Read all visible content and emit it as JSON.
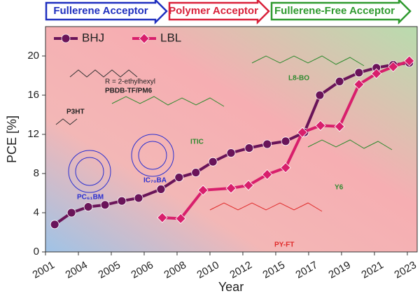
{
  "chart_data": {
    "type": "line",
    "phases": [
      "Fullerene Acceptor",
      "Polymer Acceptor",
      "Fullerene-Free Acceptor"
    ],
    "annotations": [
      "P3HT",
      "PBDB-TF/PM6",
      "R = 2-ethylhexyl",
      "PC₆₁BM",
      "IC₇₀BA",
      "ITIC",
      "L8-BO",
      "Y6",
      "PY-FT"
    ],
    "x_label": "Year",
    "y_label": "PCE [%]",
    "xlim": [
      0,
      11.3
    ],
    "ylim": [
      0,
      23
    ],
    "xticks": [
      {
        "value": 0,
        "label": "2001"
      },
      {
        "value": 1,
        "label": "2004"
      },
      {
        "value": 2,
        "label": "2005"
      },
      {
        "value": 3,
        "label": "2006"
      },
      {
        "value": 4,
        "label": "2008"
      },
      {
        "value": 5,
        "label": "2010"
      },
      {
        "value": 6,
        "label": "2012"
      },
      {
        "value": 7,
        "label": "2015"
      },
      {
        "value": 8,
        "label": "2017"
      },
      {
        "value": 9,
        "label": "2019"
      },
      {
        "value": 10,
        "label": "2021"
      },
      {
        "value": 11,
        "label": "2023"
      }
    ],
    "yticks": [
      0,
      4,
      8,
      12,
      16,
      20
    ],
    "legend": "upper left",
    "series": [
      {
        "name": "BHJ",
        "color": "#6a1459",
        "marker": "circle",
        "x": [
          0.28,
          0.79,
          1.3,
          1.81,
          2.32,
          2.83,
          3.51,
          4.06,
          4.57,
          5.09,
          5.64,
          6.19,
          6.74,
          7.3,
          7.87,
          8.34,
          8.94,
          9.53,
          10.06,
          10.57,
          11.06
        ],
        "values": [
          2.8,
          4.0,
          4.6,
          4.8,
          5.2,
          5.5,
          6.4,
          7.6,
          8.1,
          9.2,
          10.1,
          10.6,
          11.0,
          11.3,
          12.2,
          16.0,
          17.4,
          18.3,
          18.8,
          19.1,
          19.3
        ]
      },
      {
        "name": "LBL",
        "color": "#d81f6c",
        "marker": "diamond",
        "x": [
          3.55,
          4.11,
          4.79,
          5.64,
          6.17,
          6.74,
          7.3,
          7.81,
          8.36,
          8.94,
          9.53,
          10.06,
          10.57,
          11.06
        ],
        "values": [
          3.5,
          3.4,
          6.3,
          6.5,
          6.8,
          7.9,
          8.6,
          12.2,
          12.9,
          12.8,
          17.1,
          18.2,
          18.9,
          19.5
        ]
      }
    ]
  }
}
